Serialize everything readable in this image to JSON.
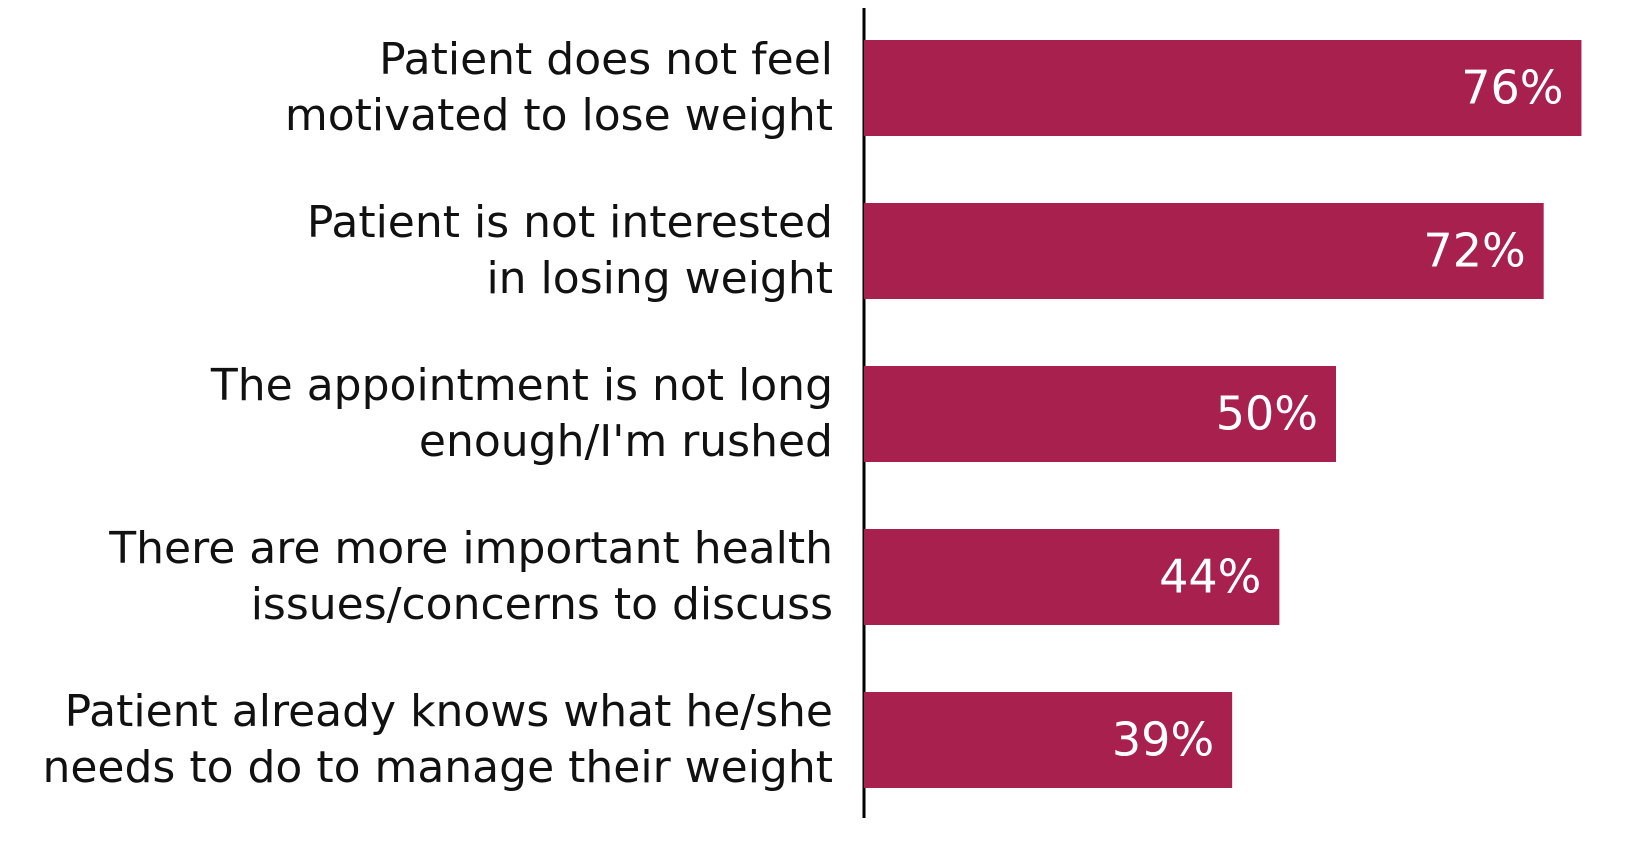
{
  "chart_data": {
    "type": "bar",
    "orientation": "horizontal",
    "categories": [
      "Patient does not feel\nmotivated to lose weight",
      "Patient is not interested\nin losing weight",
      "The appointment is not long\nenough/I'm rushed",
      "There are more important health\nissues/concerns to discuss",
      "Patient already knows what he/she\nneeds to do to manage their weight"
    ],
    "values": [
      76,
      72,
      50,
      44,
      39
    ],
    "value_labels": [
      "76%",
      "72%",
      "50%",
      "44%",
      "39%"
    ],
    "color": "#a8204e"
  }
}
